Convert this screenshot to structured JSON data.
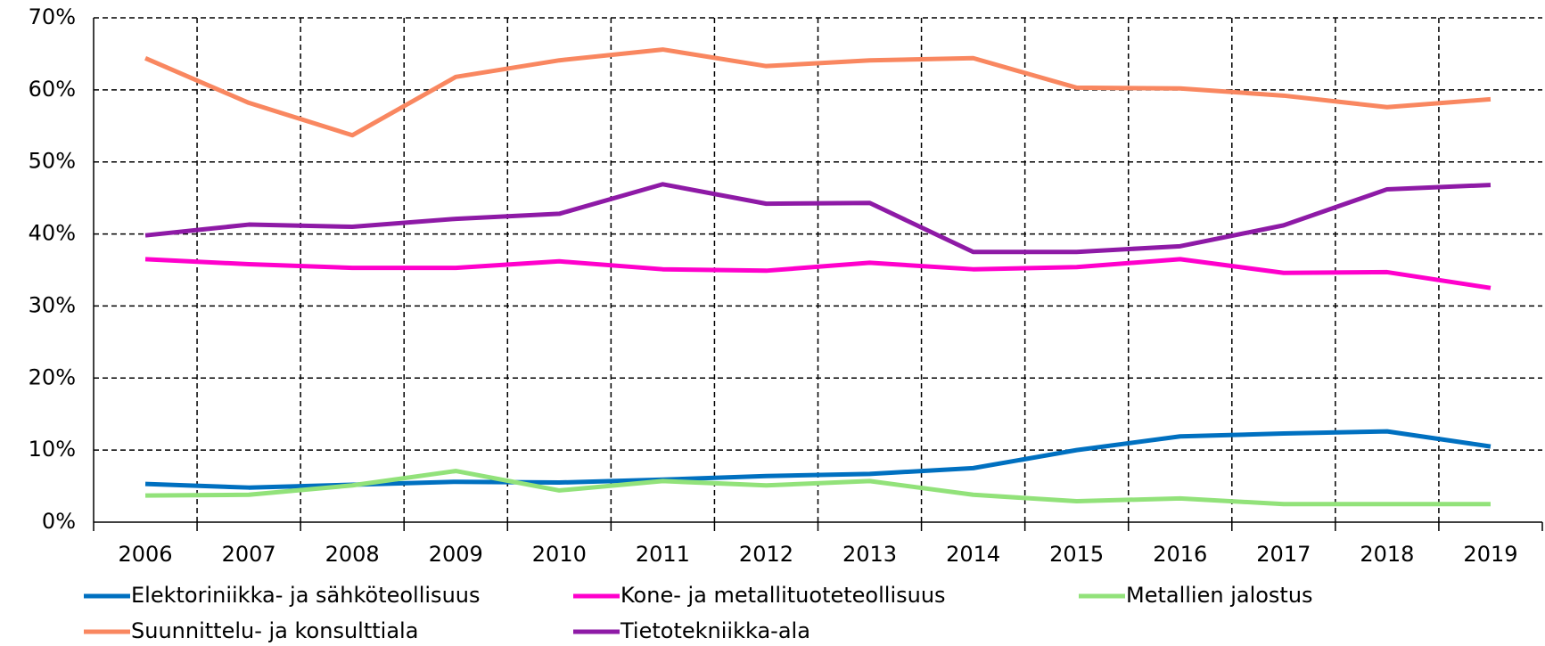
{
  "chart_data": {
    "type": "line",
    "categories": [
      "2006",
      "2007",
      "2008",
      "2009",
      "2010",
      "2011",
      "2012",
      "2013",
      "2014",
      "2015",
      "2016",
      "2017",
      "2018",
      "2019"
    ],
    "series": [
      {
        "name": "Elektoriniikka- ja sähköteollisuus",
        "color": "#0070c0",
        "values": [
          5.3,
          4.8,
          5.2,
          5.6,
          5.5,
          5.9,
          6.4,
          6.7,
          7.5,
          10.0,
          11.9,
          12.3,
          12.6,
          10.5
        ]
      },
      {
        "name": "Kone- ja metallituoteteollisuus",
        "color": "#ff00cc",
        "values": [
          36.5,
          35.8,
          35.3,
          35.3,
          36.2,
          35.1,
          34.9,
          36.0,
          35.1,
          35.4,
          36.5,
          34.6,
          34.7,
          32.5
        ]
      },
      {
        "name": "Metallien jalostus",
        "color": "#92e27a",
        "values": [
          3.7,
          3.8,
          5.1,
          7.1,
          4.4,
          5.7,
          5.1,
          5.7,
          3.8,
          2.9,
          3.3,
          2.5,
          2.5,
          2.5
        ]
      },
      {
        "name": "Suunnittelu- ja konsulttiala",
        "color": "#f98760",
        "values": [
          64.4,
          58.2,
          53.7,
          61.8,
          64.1,
          65.6,
          63.3,
          64.1,
          64.4,
          60.3,
          60.2,
          59.2,
          57.6,
          58.7
        ]
      },
      {
        "name": "Tietotekniikka-ala",
        "color": "#8e1aa6",
        "values": [
          39.8,
          41.3,
          41.0,
          42.1,
          42.8,
          46.9,
          44.2,
          44.3,
          37.5,
          37.5,
          38.3,
          41.2,
          46.2,
          46.8
        ]
      }
    ],
    "ylim": [
      0,
      70
    ],
    "yticks": [
      {
        "value": 0,
        "label": "0%"
      },
      {
        "value": 10,
        "label": "10%"
      },
      {
        "value": 20,
        "label": "20%"
      },
      {
        "value": 30,
        "label": "30%"
      },
      {
        "value": 40,
        "label": "40%"
      },
      {
        "value": 50,
        "label": "50%"
      },
      {
        "value": 60,
        "label": "60%"
      },
      {
        "value": 70,
        "label": "70%"
      }
    ],
    "grid": true,
    "legend": "bottom"
  }
}
